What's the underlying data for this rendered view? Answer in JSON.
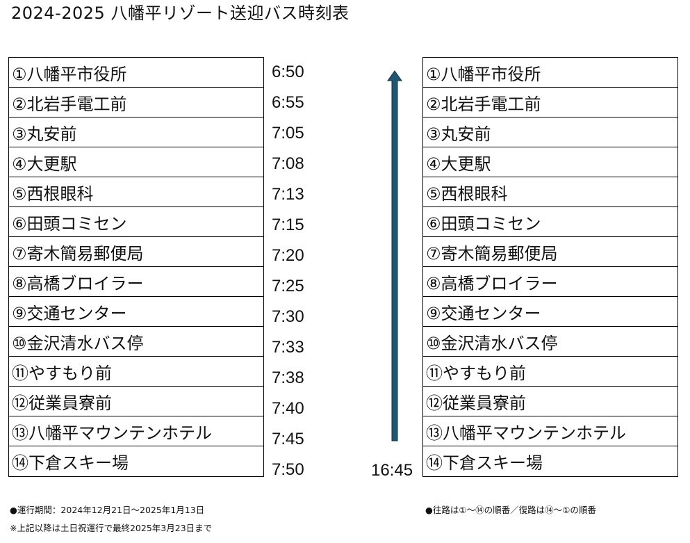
{
  "title": "2024-2025 八幡平リゾート送迎バス時刻表",
  "stops": [
    "①八幡平市役所",
    "②北岩手電工前",
    "③丸安前",
    "④大更駅",
    "⑤西根眼科",
    "⑥田頭コミセン",
    "⑦寄木簡易郵便局",
    "⑧高橋ブロイラー",
    "⑨交通センター",
    "⑩金沢清水バス停",
    "⑪やすもり前",
    "⑫従業員寮前",
    "⑬八幡平マウンテンホテル",
    "⑭下倉スキー場"
  ],
  "outbound_times": [
    "6:50",
    "6:55",
    "7:05",
    "7:08",
    "7:13",
    "7:15",
    "7:20",
    "7:25",
    "7:30",
    "7:33",
    "7:38",
    "7:40",
    "7:45",
    "7:50"
  ],
  "return_time": "16:45",
  "arrow_color": "#1f5673",
  "notes": {
    "period": "●運行期間：2024年12月21日～2025年1月13日",
    "after": "※上記以降は土日祝運行で最終2025年3月23日まで",
    "order": "●往路は①～⑭の順番／復路は⑭～①の順番"
  }
}
